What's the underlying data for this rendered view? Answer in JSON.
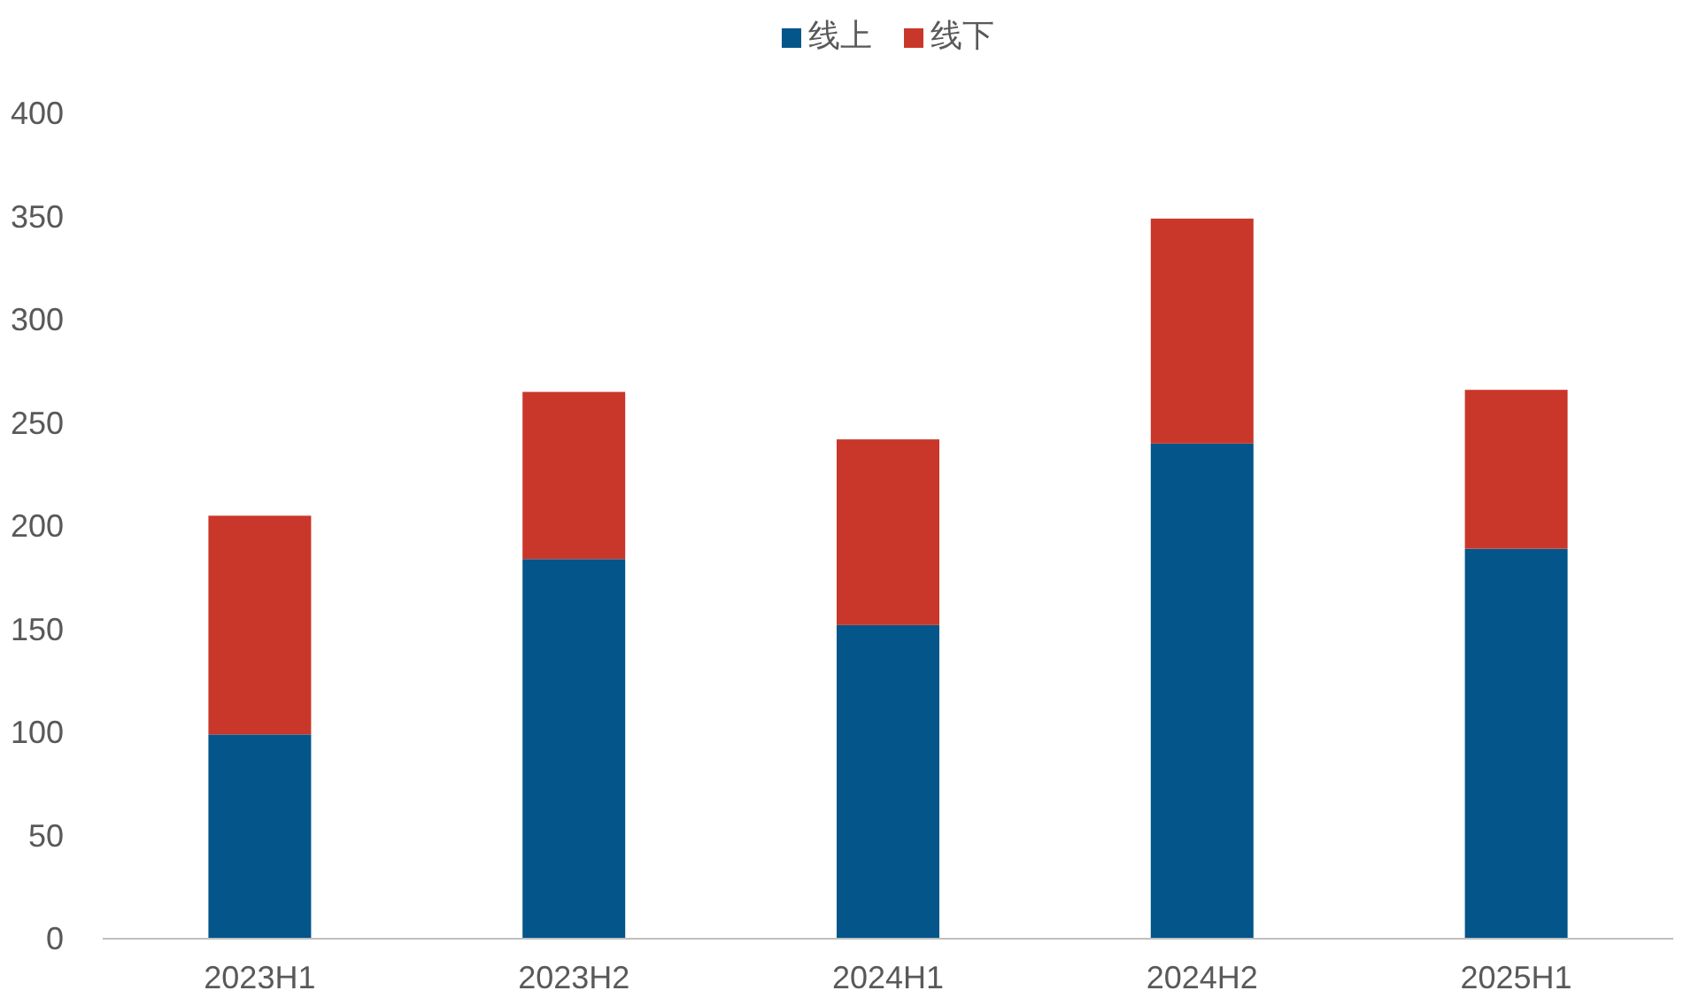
{
  "chart_data": {
    "type": "bar",
    "stacked": true,
    "legend": "top",
    "categories": [
      "2023H1",
      "2023H2",
      "2024H1",
      "2024H2",
      "2025H1"
    ],
    "series": [
      {
        "name": "线上",
        "color": "#04558a",
        "values": [
          99,
          184,
          152,
          240,
          189
        ]
      },
      {
        "name": "线下",
        "color": "#c9372a",
        "values": [
          106,
          81,
          90,
          109,
          77
        ]
      }
    ],
    "ylim": [
      0,
      400
    ],
    "yticks": [
      0,
      50,
      100,
      150,
      200,
      250,
      300,
      350,
      400
    ]
  }
}
